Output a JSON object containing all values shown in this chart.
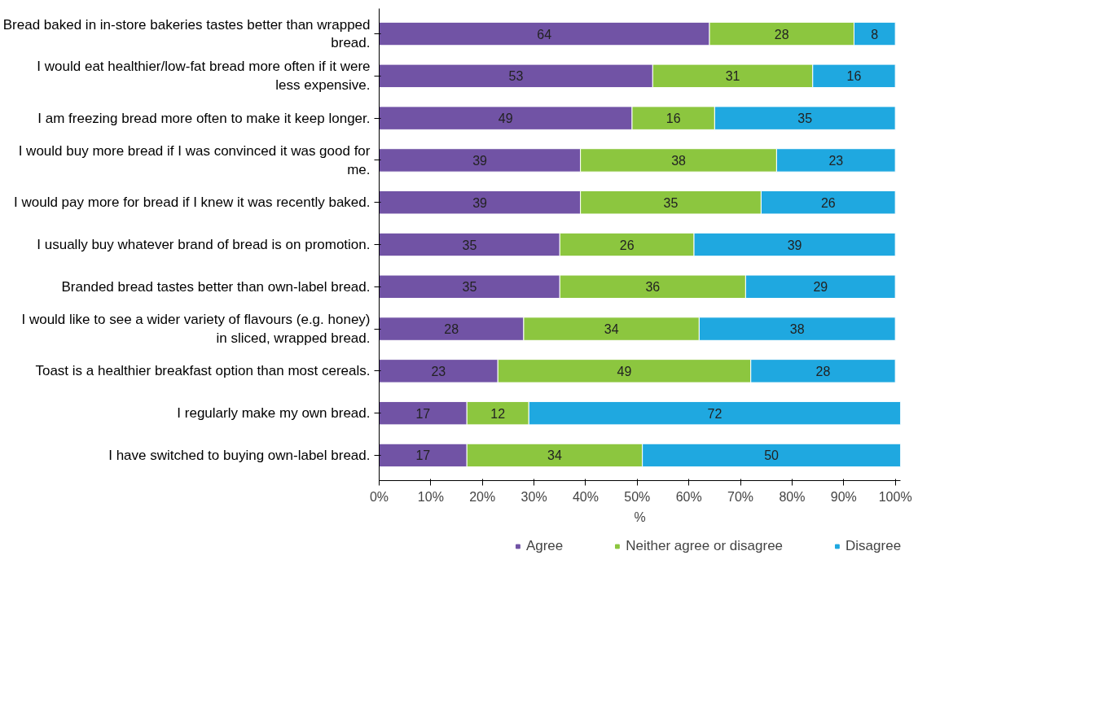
{
  "chart_data": {
    "type": "bar",
    "orientation": "horizontal",
    "stacked": true,
    "xlabel": "%",
    "categories": [
      "Bread baked in in-store bakeries tastes better than wrapped bread.",
      "I would eat healthier/low-fat bread more often if it were less expensive.",
      "I am freezing bread more often to make it keep longer.",
      "I would buy more bread if I was convinced it was good for me.",
      "I would pay more for bread if I knew it was recently baked.",
      "I usually buy whatever brand of bread is on promotion.",
      "Branded bread tastes better than own-label bread.",
      "I would like to see a wider variety of flavours (e.g. honey) in sliced, wrapped bread.",
      "Toast is a healthier breakfast option than most cereals.",
      "I regularly make my own bread.",
      "I have switched to buying own-label bread."
    ],
    "series": [
      {
        "name": "Agree",
        "color": "#7153a5",
        "values": [
          64,
          53,
          49,
          39,
          39,
          35,
          35,
          28,
          23,
          17,
          17
        ]
      },
      {
        "name": "Neither agree or disagree",
        "color": "#8cc63f",
        "values": [
          28,
          31,
          16,
          38,
          35,
          26,
          36,
          34,
          49,
          12,
          34
        ]
      },
      {
        "name": "Disagree",
        "color": "#1fa8e0",
        "values": [
          8,
          16,
          35,
          23,
          26,
          39,
          29,
          38,
          28,
          72,
          50
        ]
      }
    ],
    "xlim": [
      0,
      101
    ],
    "xticks": [
      {
        "value": 0,
        "label": "0%"
      },
      {
        "value": 10,
        "label": "10%"
      },
      {
        "value": 20,
        "label": "20%"
      },
      {
        "value": 30,
        "label": "30%"
      },
      {
        "value": 40,
        "label": "40%"
      },
      {
        "value": 50,
        "label": "50%"
      },
      {
        "value": 60,
        "label": "60%"
      },
      {
        "value": 70,
        "label": "70%"
      },
      {
        "value": 80,
        "label": "80%"
      },
      {
        "value": 90,
        "label": "90%"
      },
      {
        "value": 100,
        "label": "100%"
      }
    ],
    "data_labels": true,
    "grid": false,
    "legend": "bottom"
  }
}
